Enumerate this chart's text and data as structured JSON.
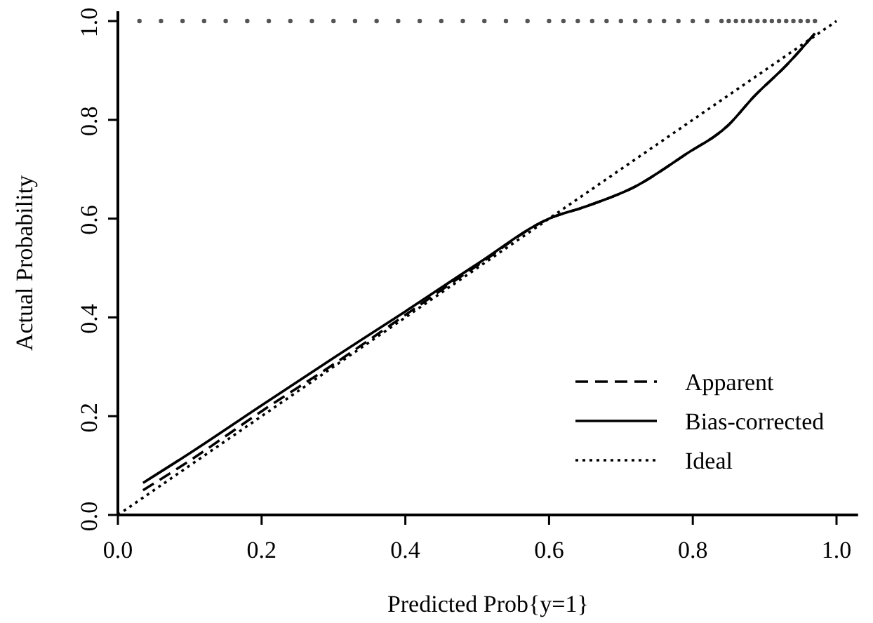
{
  "chart_data": {
    "type": "line",
    "xlabel": "Predicted Prob{y=1}",
    "ylabel": "Actual Probability",
    "xlim": [
      0,
      1.03
    ],
    "ylim": [
      0,
      1.02
    ],
    "xticks": [
      {
        "value": 0,
        "label": "0.0"
      },
      0.2,
      0.4,
      0.6,
      0.8,
      {
        "value": 1,
        "label": "1.0"
      }
    ],
    "yticks": [
      {
        "value": 0,
        "label": "0.0"
      },
      0.2,
      0.4,
      0.6,
      0.8,
      {
        "value": 1,
        "label": "1.0"
      }
    ],
    "grid": false,
    "legend": "bottom right",
    "series": [
      {
        "name": "Apparent",
        "color": "#000000",
        "line_style": "dashed",
        "x": [
          0.035,
          0.1,
          0.2,
          0.3,
          0.4,
          0.5,
          0.6,
          0.65,
          0.72,
          0.79,
          0.85,
          0.885,
          0.93,
          0.97
        ],
        "values": [
          0.05,
          0.11,
          0.21,
          0.305,
          0.405,
          0.505,
          0.6,
          0.624,
          0.665,
          0.73,
          0.79,
          0.847,
          0.91,
          0.975
        ]
      },
      {
        "name": "Bias-corrected",
        "color": "#000000",
        "line_style": "solid",
        "x": [
          0.035,
          0.1,
          0.2,
          0.3,
          0.4,
          0.5,
          0.6,
          0.65,
          0.72,
          0.79,
          0.85,
          0.885,
          0.93,
          0.97
        ],
        "values": [
          0.065,
          0.125,
          0.222,
          0.318,
          0.412,
          0.508,
          0.6,
          0.624,
          0.665,
          0.73,
          0.79,
          0.847,
          0.91,
          0.975
        ]
      },
      {
        "name": "Ideal",
        "color": "#000000",
        "line_style": "dotted",
        "x": [
          0,
          1
        ],
        "values": [
          0,
          1
        ]
      },
      {
        "type": "scatter",
        "color": "#555555",
        "marker": "circle",
        "x": [
          0.03,
          0.06,
          0.09,
          0.12,
          0.15,
          0.18,
          0.21,
          0.24,
          0.27,
          0.3,
          0.33,
          0.36,
          0.39,
          0.42,
          0.45,
          0.48,
          0.51,
          0.54,
          0.57,
          0.6,
          0.62,
          0.64,
          0.66,
          0.68,
          0.7,
          0.72,
          0.74,
          0.76,
          0.78,
          0.8,
          0.82,
          0.84,
          0.85,
          0.86,
          0.87,
          0.88,
          0.89,
          0.9,
          0.91,
          0.92,
          0.93,
          0.94,
          0.95,
          0.96,
          0.97
        ],
        "values": [
          1,
          1,
          1,
          1,
          1,
          1,
          1,
          1,
          1,
          1,
          1,
          1,
          1,
          1,
          1,
          1,
          1,
          1,
          1,
          1,
          1,
          1,
          1,
          1,
          1,
          1,
          1,
          1,
          1,
          1,
          1,
          1,
          1,
          1,
          1,
          1,
          1,
          1,
          1,
          1,
          1,
          1,
          1,
          1,
          1
        ]
      }
    ]
  }
}
